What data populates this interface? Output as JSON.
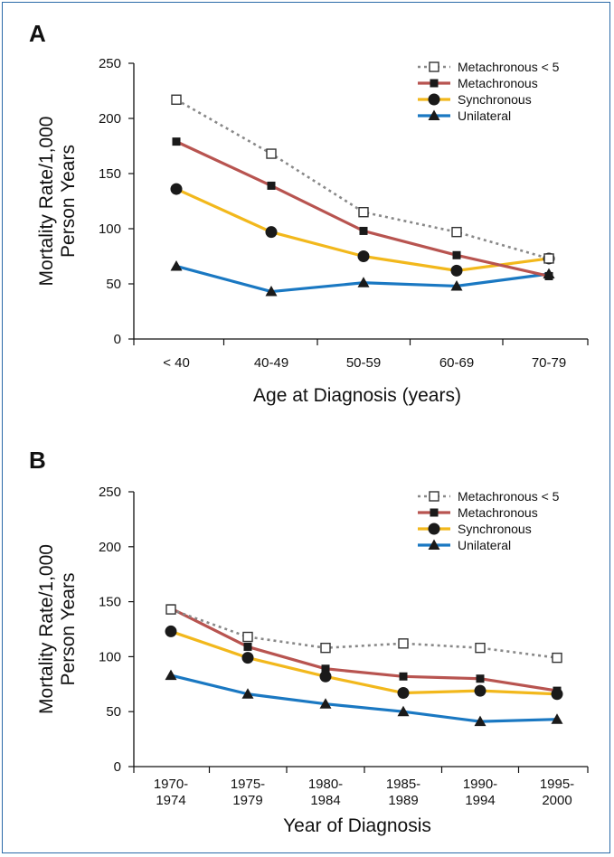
{
  "chart_data": [
    {
      "type": "line",
      "panel_label": "A",
      "categories": [
        "< 40",
        "40-49",
        "50-59",
        "60-69",
        "70-79"
      ],
      "xlabel": "Age at Diagnosis (years)",
      "ylabel": [
        "Mortality Rate/1,000",
        "Person Years"
      ],
      "ylim": [
        0,
        250
      ],
      "yticks": [
        "0",
        "50",
        "100",
        "150",
        "200",
        "250"
      ],
      "legend_position": "top-right",
      "series": [
        {
          "name": "Metachronous < 5",
          "values": [
            217,
            168,
            115,
            97,
            73
          ],
          "color": "#888888",
          "marker": "open-square",
          "dashed": true
        },
        {
          "name": "Metachronous",
          "values": [
            179,
            139,
            98,
            76,
            57
          ],
          "color": "#b85450",
          "marker": "filled-square",
          "dashed": false
        },
        {
          "name": "Synchronous",
          "values": [
            136,
            97,
            75,
            62,
            73
          ],
          "color": "#f2b81c",
          "marker": "filled-circle",
          "dashed": false
        },
        {
          "name": "Unilateral",
          "values": [
            66,
            43,
            51,
            48,
            59
          ],
          "color": "#1a78c2",
          "marker": "filled-triangle",
          "dashed": false
        }
      ]
    },
    {
      "type": "line",
      "panel_label": "B",
      "categories": [
        [
          "1970-",
          "1974"
        ],
        [
          "1975-",
          "1979"
        ],
        [
          "1980-",
          "1984"
        ],
        [
          "1985-",
          "1989"
        ],
        [
          "1990-",
          "1994"
        ],
        [
          "1995-",
          "2000"
        ]
      ],
      "xlabel": "Year of Diagnosis",
      "ylabel": [
        "Mortality Rate/1,000",
        "Person Years"
      ],
      "ylim": [
        0,
        250
      ],
      "yticks": [
        "0",
        "50",
        "100",
        "150",
        "200",
        "250"
      ],
      "legend_position": "top-right",
      "series": [
        {
          "name": "Metachronous < 5",
          "values": [
            143,
            118,
            108,
            112,
            108,
            99
          ],
          "color": "#888888",
          "marker": "open-square",
          "dashed": true
        },
        {
          "name": "Metachronous",
          "values": [
            144,
            109,
            89,
            82,
            80,
            69
          ],
          "color": "#b85450",
          "marker": "filled-square",
          "dashed": false
        },
        {
          "name": "Synchronous",
          "values": [
            123,
            99,
            82,
            67,
            69,
            66
          ],
          "color": "#f2b81c",
          "marker": "filled-circle",
          "dashed": false
        },
        {
          "name": "Unilateral",
          "values": [
            83,
            66,
            57,
            50,
            41,
            43
          ],
          "color": "#1a78c2",
          "marker": "filled-triangle",
          "dashed": false
        }
      ]
    }
  ]
}
